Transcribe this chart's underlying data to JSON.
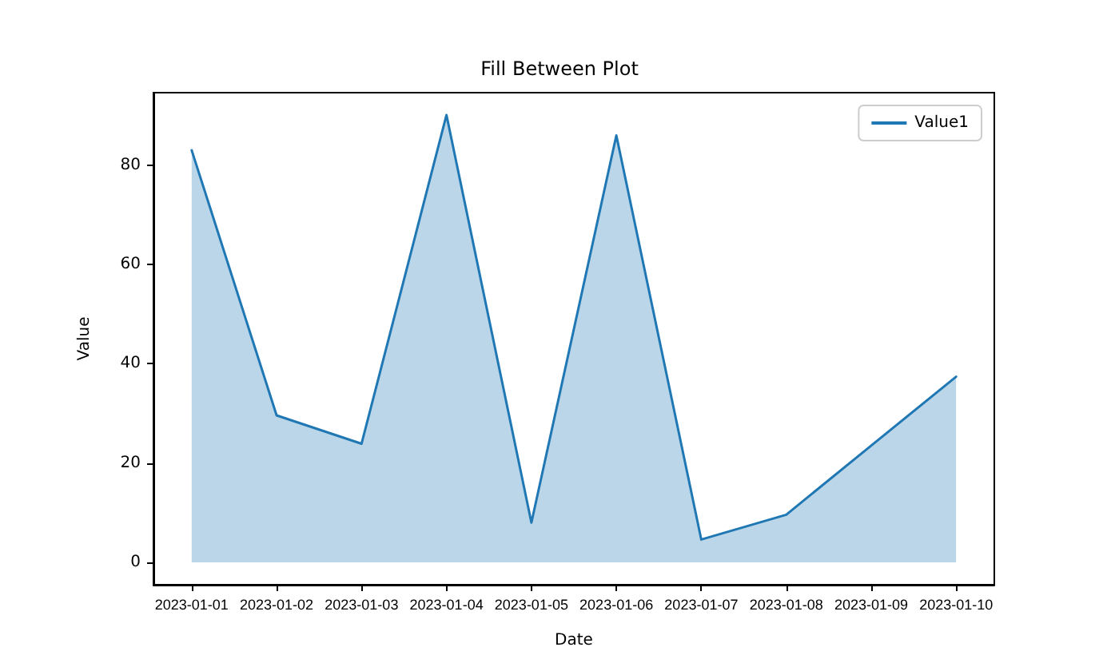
{
  "chart_data": {
    "type": "area",
    "title": "Fill Between Plot",
    "xlabel": "Date",
    "ylabel": "Value",
    "x": [
      "2023-01-01",
      "2023-01-02",
      "2023-01-03",
      "2023-01-04",
      "2023-01-05",
      "2023-01-06",
      "2023-01-07",
      "2023-01-08",
      "2023-01-09",
      "2023-01-10"
    ],
    "series": [
      {
        "name": "Value1",
        "color": "#1f77b4",
        "values": [
          83.0,
          29.6,
          23.9,
          90.1,
          8.0,
          86.0,
          4.6,
          9.6,
          23.5,
          37.4
        ]
      }
    ],
    "xlim": [
      "2022-12-31T13:12",
      "2023-01-10T10:48"
    ],
    "xticks": [
      "2023-01-01",
      "2023-01-02",
      "2023-01-03",
      "2023-01-04",
      "2023-01-05",
      "2023-01-06",
      "2023-01-07",
      "2023-01-08",
      "2023-01-09",
      "2023-01-10"
    ],
    "ylim": [
      -4.5,
      94.6
    ],
    "yticks": [
      0,
      20,
      40,
      60,
      80
    ],
    "legend": "top right",
    "grid": false,
    "marker": "none",
    "line_style": "solid"
  }
}
